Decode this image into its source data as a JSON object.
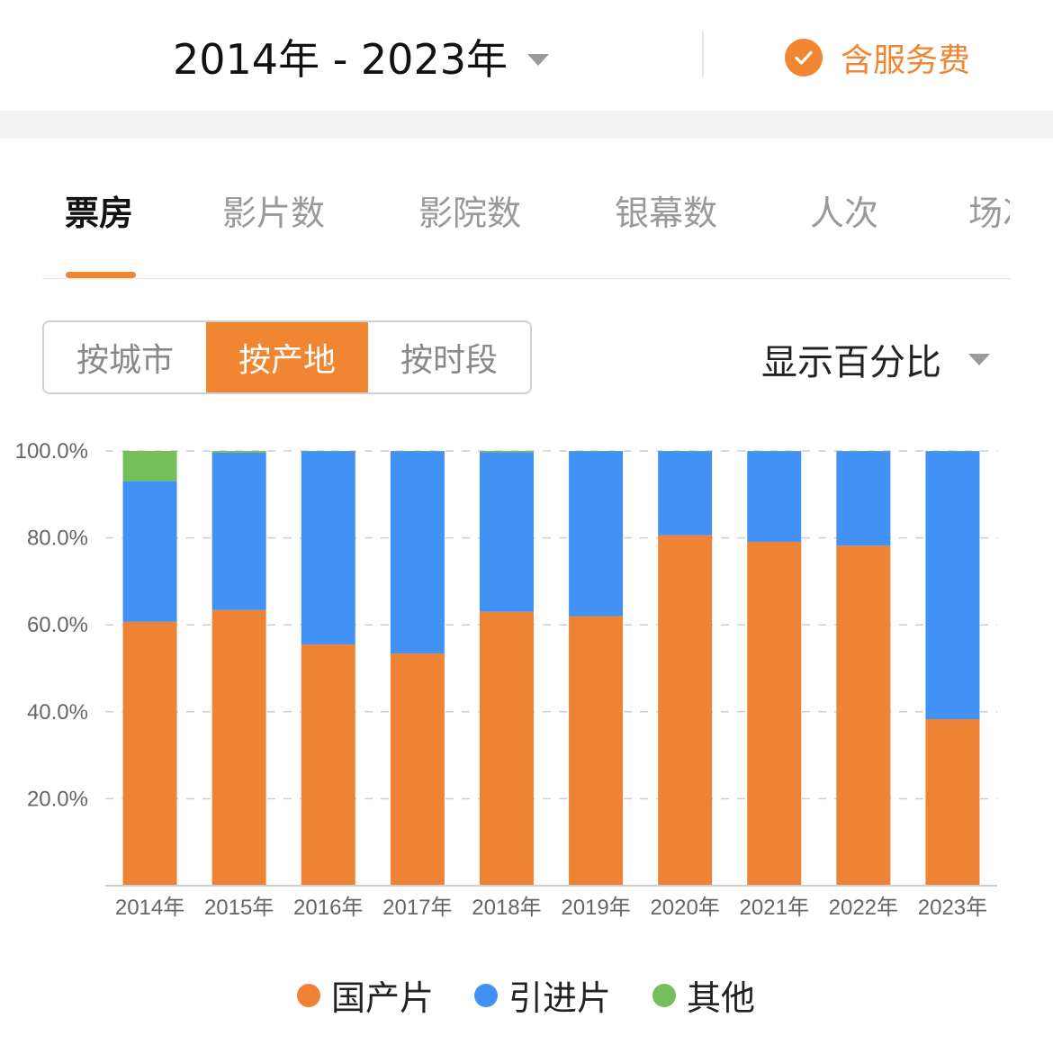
{
  "header": {
    "date_range": "2014年 - 2023年",
    "fee_label": "含服务费"
  },
  "tabs": [
    {
      "label": "票房",
      "active": true
    },
    {
      "label": "影片数",
      "active": false
    },
    {
      "label": "影院数",
      "active": false
    },
    {
      "label": "银幕数",
      "active": false
    },
    {
      "label": "人次",
      "active": false
    },
    {
      "label": "场次",
      "active": false
    }
  ],
  "segments": [
    {
      "label": "按城市",
      "active": false
    },
    {
      "label": "按产地",
      "active": true
    },
    {
      "label": "按时段",
      "active": false
    }
  ],
  "display_mode": "显示百分比",
  "colors": {
    "accent": "#f08532",
    "domestic": "#ee8235",
    "imported": "#4291f5",
    "other": "#74bf57"
  },
  "chart_data": {
    "type": "bar",
    "stacked": true,
    "categories": [
      "2014年",
      "2015年",
      "2016年",
      "2017年",
      "2018年",
      "2019年",
      "2020年",
      "2021年",
      "2022年",
      "2023年"
    ],
    "series": [
      {
        "name": "国产片",
        "color": "#ee8235",
        "values": [
          60.7,
          63.4,
          55.5,
          53.4,
          63.0,
          62.0,
          80.6,
          79.1,
          78.2,
          38.3
        ]
      },
      {
        "name": "引进片",
        "color": "#4291f5",
        "values": [
          32.4,
          36.2,
          44.4,
          46.5,
          36.7,
          37.9,
          19.3,
          20.8,
          21.7,
          61.6
        ]
      },
      {
        "name": "其他",
        "color": "#74bf57",
        "values": [
          6.9,
          0.4,
          0.1,
          0.1,
          0.3,
          0.1,
          0.1,
          0.1,
          0.1,
          0.1
        ]
      }
    ],
    "yticks": [
      "20.0%",
      "40.0%",
      "60.0%",
      "80.0%",
      "100.0%"
    ],
    "ylim": [
      0,
      100
    ],
    "grid": true,
    "legend_position": "bottom"
  }
}
